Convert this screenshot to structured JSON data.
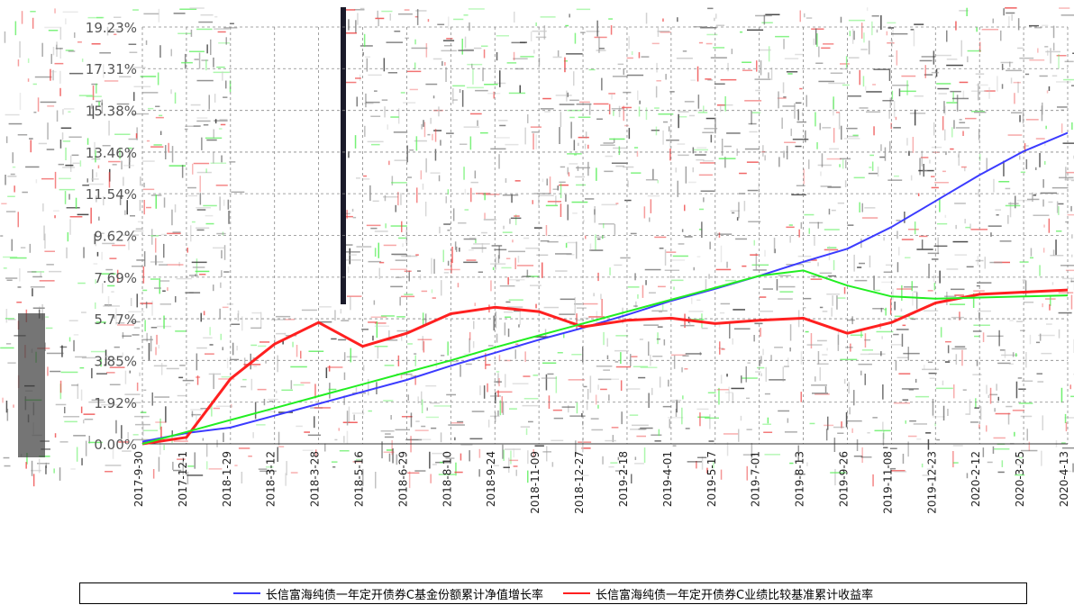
{
  "chart_data": {
    "type": "line",
    "y_ticks": [
      "0.00%",
      "1.92%",
      "3.85%",
      "5.77%",
      "7.69%",
      "9.62%",
      "11.54%",
      "13.46%",
      "15.38%",
      "17.31%",
      "19.23%"
    ],
    "ylim": [
      0,
      19.23
    ],
    "x_ticks": [
      "2017-9-30",
      "2017-12-1",
      "2018-1-29",
      "2018-3-12",
      "2018-3-28",
      "2018-5-16",
      "2018-6-29",
      "2018-8-10",
      "2018-9-24",
      "2018-11-09",
      "2018-12-27",
      "2019-2-18",
      "2019-4-01",
      "2019-5-17",
      "2019-7-01",
      "2019-8-13",
      "2019-9-26",
      "2019-11-08",
      "2019-12-23",
      "2020-2-12",
      "2020-3-25",
      "2020-4-13"
    ],
    "grid": true,
    "legend_position": "bottom",
    "series": [
      {
        "name": "长信富海纯债一年定开债券C基金份额累计净值增长率",
        "color": "#3b3bff",
        "values": [
          0.1,
          0.5,
          0.75,
          1.3,
          1.85,
          2.4,
          2.95,
          3.6,
          4.2,
          4.8,
          5.35,
          5.95,
          6.6,
          7.15,
          7.75,
          8.4,
          9.0,
          10.0,
          11.2,
          12.4,
          13.5,
          14.35
        ]
      },
      {
        "name": "长信富海纯债一年定开债券C业绩比较基准累计收益率",
        "color": "#ff2020",
        "values": [
          0.0,
          0.3,
          3.0,
          4.6,
          5.6,
          4.5,
          5.1,
          6.0,
          6.3,
          6.1,
          5.4,
          5.7,
          5.8,
          5.55,
          5.7,
          5.8,
          5.1,
          5.6,
          6.5,
          6.9,
          7.0,
          7.1
        ]
      },
      {
        "color": "#22ee22",
        "values": [
          0.0,
          0.55,
          1.1,
          1.65,
          2.2,
          2.75,
          3.3,
          3.85,
          4.45,
          5.0,
          5.55,
          6.1,
          6.65,
          7.2,
          7.75,
          8.0,
          7.3,
          6.8,
          6.7,
          6.75,
          6.8,
          6.85
        ]
      }
    ]
  }
}
